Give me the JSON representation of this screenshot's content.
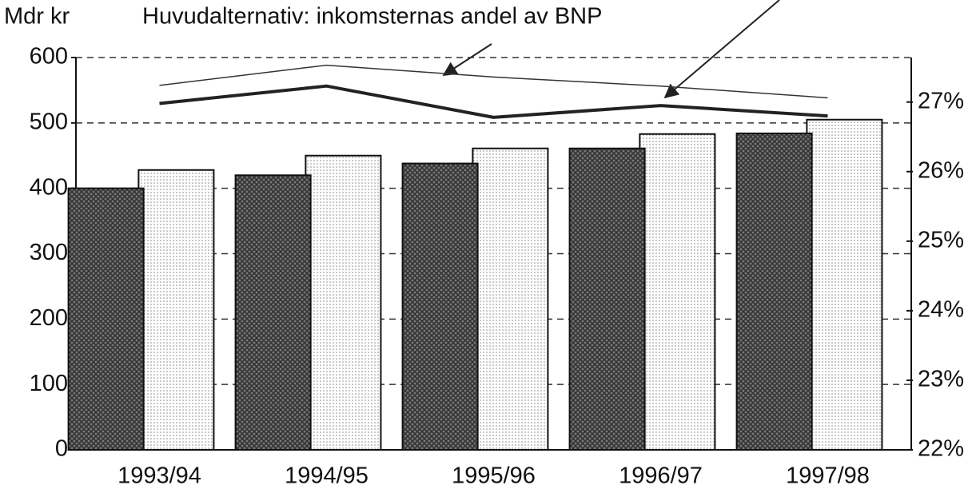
{
  "chart_data": {
    "type": "bar-line",
    "y_label": "Mdr kr",
    "annotation": "Huvudalternativ: inkomsternas andel av BNP",
    "categories": [
      "1993/94",
      "1994/95",
      "1995/96",
      "1996/97",
      "1997/98"
    ],
    "series": [
      {
        "type": "bar",
        "color": "#333333",
        "values": [
          400,
          420,
          438,
          461,
          484
        ]
      },
      {
        "type": "bar",
        "color": "#888888",
        "values": [
          428,
          450,
          461,
          483,
          505
        ]
      },
      {
        "type": "line",
        "axis": "y2",
        "color": "#333333",
        "width": 1.5,
        "values": [
          27.24,
          27.53,
          27.36,
          27.23,
          27.06
        ]
      },
      {
        "type": "line",
        "axis": "y2",
        "color": "#222222",
        "width": 4,
        "values": [
          26.98,
          27.23,
          26.78,
          26.95,
          26.8
        ]
      }
    ],
    "ylim": [
      0,
      600
    ],
    "yticks": [
      0,
      100,
      200,
      300,
      400,
      500,
      600
    ],
    "y2lim": [
      22,
      27.64
    ],
    "y2ticks": [
      {
        "value": 22,
        "label": "22%"
      },
      {
        "value": 23,
        "label": "23%"
      },
      {
        "value": 24,
        "label": "24%"
      },
      {
        "value": 25,
        "label": "25%"
      },
      {
        "value": 26,
        "label": "26%"
      },
      {
        "value": 27,
        "label": "27%"
      }
    ],
    "grid": true
  }
}
